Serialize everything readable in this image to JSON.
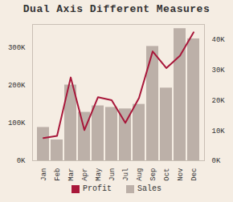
{
  "chart_data": {
    "type": "bar",
    "title": "Dual Axis Different Measures",
    "categories": [
      "Jan",
      "Feb",
      "Mar",
      "Apr",
      "May",
      "Jun",
      "Jul",
      "Aug",
      "Sep",
      "Oct",
      "Nov",
      "Dec"
    ],
    "series": [
      {
        "name": "Sales",
        "type": "bar",
        "color": "#bcb0a8",
        "values": [
          88000,
          55000,
          200000,
          128000,
          145000,
          141000,
          137000,
          149000,
          302000,
          192000,
          349000,
          322000
        ]
      },
      {
        "name": "Profit",
        "type": "line",
        "axis": "y2",
        "color": "#a8173a",
        "values": [
          7500,
          8200,
          27500,
          10100,
          21000,
          20000,
          12500,
          20700,
          36100,
          30600,
          34700,
          42400
        ]
      }
    ],
    "ylim": [
      0,
      360000
    ],
    "yticks": [
      {
        "value": 0,
        "label": "0K"
      },
      {
        "value": 100000,
        "label": "100K"
      },
      {
        "value": 200000,
        "label": "200K"
      },
      {
        "value": 300000,
        "label": "300K"
      }
    ],
    "y2lim": [
      0,
      45000
    ],
    "y2ticks": [
      {
        "value": 0,
        "label": "0K"
      },
      {
        "value": 10000,
        "label": "10K"
      },
      {
        "value": 20000,
        "label": "20K"
      },
      {
        "value": 30000,
        "label": "30K"
      },
      {
        "value": 40000,
        "label": "40K"
      }
    ],
    "legend": "bottom",
    "grid": false
  }
}
